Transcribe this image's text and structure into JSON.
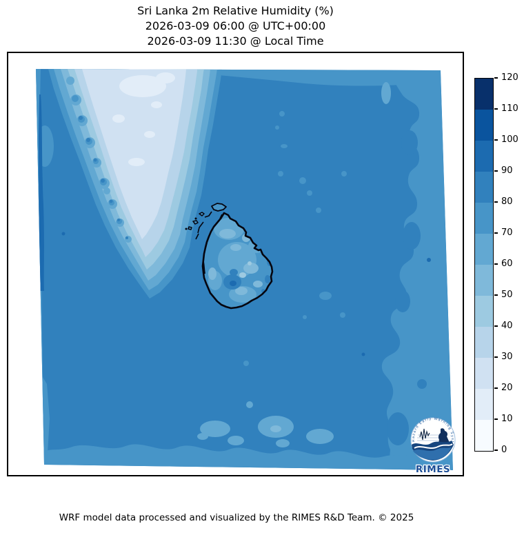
{
  "title": {
    "line1": "Sri Lanka 2m Relative Humidity (%)",
    "line2": "2026-03-09 06:00 @ UTC+00:00",
    "line3": "2026-03-09 11:30 @ Local Time"
  },
  "footer": {
    "credit": "WRF model data processed and visualized by the RIMES R&D Team. © 2025"
  },
  "logo": {
    "wordmark": "RIMES",
    "ring_text": "Hazard Early Warning System",
    "wordmark_color": "#1d4f97"
  },
  "colorbar": {
    "orientation": "vertical",
    "ticks": [
      "0",
      "10",
      "20",
      "30",
      "40",
      "50",
      "60",
      "70",
      "80",
      "90",
      "100",
      "110",
      "120"
    ],
    "band_colors": [
      "#f7fbff",
      "#e2edf8",
      "#d0e1f2",
      "#b7d4ea",
      "#9dcae1",
      "#7fb9da",
      "#62a8d2",
      "#4795c8",
      "#3181bd",
      "#1c6bb0",
      "#0a549e",
      "#08306b"
    ]
  },
  "chart_data": {
    "type": "heatmap",
    "title": "Sri Lanka 2m Relative Humidity (%)",
    "subtitle_utc": "2026-03-09 06:00 @ UTC+00:00",
    "subtitle_local": "2026-03-09 11:30 @ Local Time",
    "variable": "2m relative humidity",
    "units": "%",
    "colormap": "Blues",
    "levels": [
      0,
      10,
      20,
      30,
      40,
      50,
      60,
      70,
      80,
      90,
      100,
      110,
      120
    ],
    "colorbar_ticks": [
      0,
      10,
      20,
      30,
      40,
      50,
      60,
      70,
      80,
      90,
      100,
      110,
      120
    ],
    "legend_position": "right",
    "grid": false,
    "region_values": {
      "ocean_background": 85,
      "ocean_light_patches": 75,
      "map_edge_bands": 75,
      "southern_india_interior": 25,
      "southern_india_driest_patches": 15,
      "india_coastal_fringe_range": "30-70",
      "western_ghats_spots_range": "60-90",
      "sri_lanka_interior_range": "60-80",
      "sri_lanka_light_patches_range": "40-60",
      "sri_lanka_central_wet_spot_range": "80-100"
    }
  }
}
